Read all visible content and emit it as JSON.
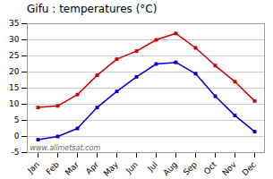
{
  "chart_data": {
    "type": "line",
    "title": "Gifu : temperatures (°C)",
    "categories": [
      "Jan",
      "Feb",
      "Mar",
      "Apr",
      "May",
      "Jun",
      "Jul",
      "Aug",
      "Sep",
      "Oct",
      "Nov",
      "Dec"
    ],
    "series": [
      {
        "color": "#cc0000",
        "marker": "square",
        "values": [
          9,
          9.5,
          13,
          19,
          24,
          26.5,
          30,
          32,
          27.5,
          22,
          17,
          11
        ]
      },
      {
        "color": "#0000cc",
        "marker": "square",
        "values": [
          -1,
          0,
          2.5,
          9,
          14,
          18.5,
          22.5,
          23,
          19.5,
          12.5,
          6.5,
          1.5
        ]
      }
    ],
    "ylim": [
      -5,
      35
    ],
    "yticks": [
      -5,
      0,
      5,
      10,
      15,
      20,
      25,
      30,
      35
    ],
    "grid": true,
    "annotations": [
      "www.allmetsat.com"
    ]
  }
}
